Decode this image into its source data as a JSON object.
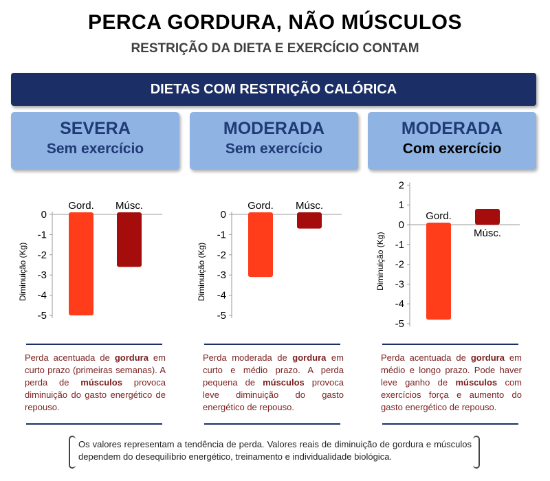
{
  "header": {
    "title": "PERCA GORDURA, NÃO MÚSCULOS",
    "subtitle": "RESTRIÇÃO DA DIETA E EXERCÍCIO CONTAM",
    "banner": "DIETAS COM RESTRIÇÃO CALÓRICA"
  },
  "panels": [
    {
      "title": "SEVERA",
      "subtitle": "Sem exercício",
      "desc_parts": [
        "Perda acentuada de ",
        "gordura",
        " em curto prazo (primeiras semanas). A perda de ",
        "músculos",
        " provoca diminuição do gasto energético de repouso."
      ]
    },
    {
      "title": "MODERADA",
      "subtitle": "Sem exercício",
      "desc_parts": [
        "Perda moderada de ",
        "gordura",
        " em curto e médio prazo. A perda pequena de ",
        "músculos",
        " provoca leve diminuição do gasto energético de repouso."
      ]
    },
    {
      "title": "MODERADA",
      "subtitle": "Com exercício",
      "desc_parts": [
        "Perda acentuada de ",
        "gordura",
        " em médio e longo prazo. Pode haver leve ganho de ",
        "músculos",
        " com exercícios força e aumento do gasto energético de repouso."
      ]
    }
  ],
  "note": "Os valores representam a tendência de perda. Valores reais de diminuição de gordura e músculos dependem do desequilíbrio energético, treinamento e individualidade biológica.",
  "colors": {
    "fat": "#ff3d1a",
    "muscle": "#a50c0c",
    "navy": "#1b2f66",
    "panel": "#8fb4e3",
    "desc_text": "#7a1f1f"
  },
  "chart_data": [
    {
      "type": "bar",
      "categories": [
        "Gord.",
        "Músc."
      ],
      "values": [
        -5,
        -2.6
      ],
      "ylabel": "Diminuição (Kg)",
      "ylim": [
        -5,
        0
      ],
      "yticks": [
        0,
        -1,
        -2,
        -3,
        -4,
        -5
      ]
    },
    {
      "type": "bar",
      "categories": [
        "Gord.",
        "Músc."
      ],
      "values": [
        -3.1,
        -0.7
      ],
      "ylabel": "Diminuição (Kg)",
      "ylim": [
        -5,
        0
      ],
      "yticks": [
        0,
        -1,
        -2,
        -3,
        -4,
        -5
      ]
    },
    {
      "type": "bar",
      "categories": [
        "Gord.",
        "Músc."
      ],
      "values": [
        -4.8,
        0.8
      ],
      "ylabel": "Diminuição (Kg)",
      "ylim": [
        -5,
        2
      ],
      "yticks": [
        2,
        1,
        0,
        -1,
        -2,
        -3,
        -4,
        -5
      ]
    }
  ]
}
